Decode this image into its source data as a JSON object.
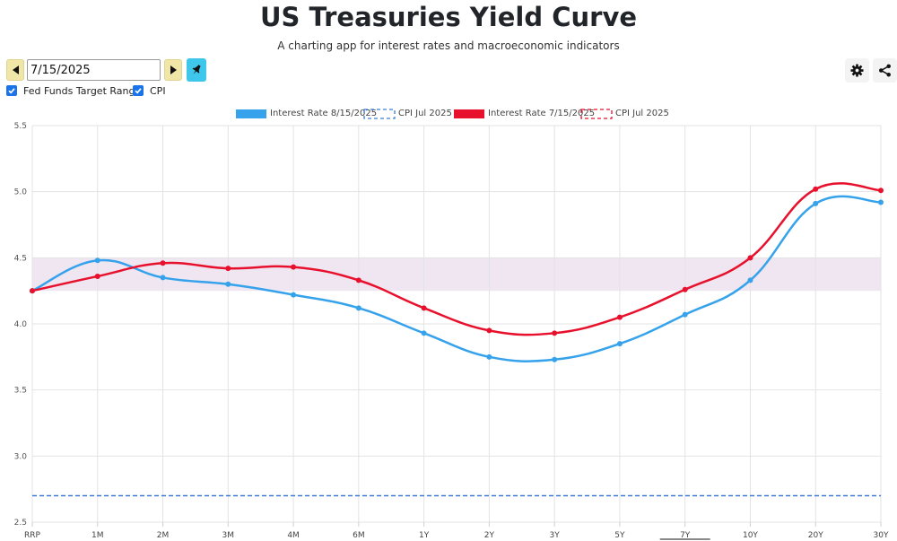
{
  "page": {
    "title": "US Treasuries Yield Curve",
    "subtitle": "A charting app for interest rates and macroeconomic indicators"
  },
  "controls": {
    "date_value": "7/15/2025",
    "prev_icon": "caret-left-icon",
    "next_icon": "caret-right-icon",
    "pin_icon": "pin-icon",
    "settings_icon": "gear-icon",
    "share_icon": "share-icon",
    "checkboxes": [
      {
        "label": "Fed Funds Target Range",
        "checked": true
      },
      {
        "label": "CPI",
        "checked": true
      }
    ]
  },
  "colors": {
    "series_blue": "#36a2eb",
    "series_red": "#e8112d",
    "cpi_blue": "#3b7dd8",
    "band": "#efe6f1",
    "checkbox": "#1a73e8",
    "nav_button": "#f0e6a8",
    "pin_button": "#3ec7ea"
  },
  "chart_data": {
    "type": "line",
    "categories": [
      "RRP",
      "1M",
      "2M",
      "3M",
      "4M",
      "6M",
      "1Y",
      "2Y",
      "3Y",
      "5Y",
      "7Y",
      "10Y",
      "20Y",
      "30Y"
    ],
    "ylim": [
      2.5,
      5.5
    ],
    "yticks": [
      "2.5",
      "3.0",
      "3.5",
      "4.0",
      "4.5",
      "5.0",
      "5.5"
    ],
    "grid": true,
    "legend_position": "top-center",
    "series": [
      {
        "name": "Interest Rate 8/15/2025",
        "color": "#36a2eb",
        "values": [
          4.25,
          4.48,
          4.35,
          4.3,
          4.22,
          4.12,
          3.93,
          3.75,
          3.73,
          3.85,
          4.07,
          4.33,
          4.91,
          4.92
        ]
      },
      {
        "name": "Interest Rate 7/15/2025",
        "color": "#e8112d",
        "values": [
          4.25,
          4.36,
          4.46,
          4.42,
          4.43,
          4.33,
          4.12,
          3.95,
          3.93,
          4.05,
          4.26,
          4.5,
          5.02,
          5.01
        ]
      }
    ],
    "reference_lines": [
      {
        "name": "CPI Jul 2025",
        "color": "#3b7dd8",
        "value": 2.7,
        "dashed": true
      },
      {
        "name": "CPI Jul 2025",
        "color": "#e8112d",
        "value": 2.7,
        "dashed": true
      }
    ],
    "band": {
      "name": "Fed Funds Target Range",
      "from": 4.25,
      "to": 4.5
    }
  }
}
